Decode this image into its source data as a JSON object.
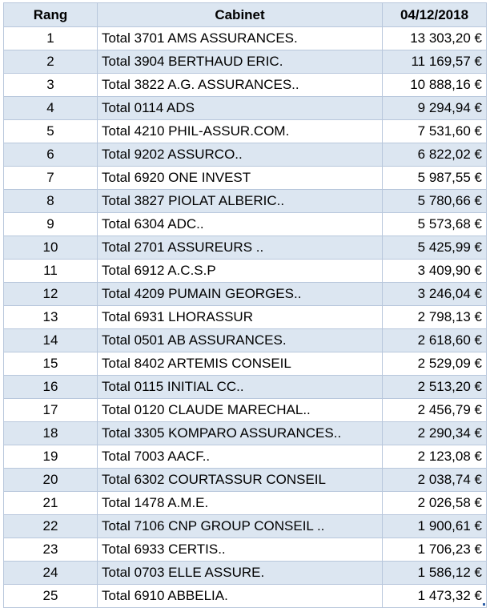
{
  "table": {
    "headers": {
      "rang": "Rang",
      "cabinet": "Cabinet",
      "date": "04/12/2018"
    },
    "rows": [
      {
        "rang": "1",
        "cabinet": "Total 3701 AMS ASSURANCES.",
        "value": "13 303,20 €"
      },
      {
        "rang": "2",
        "cabinet": "Total 3904 BERTHAUD ERIC.",
        "value": "11 169,57 €"
      },
      {
        "rang": "3",
        "cabinet": "Total 3822 A.G. ASSURANCES..",
        "value": "10 888,16 €"
      },
      {
        "rang": "4",
        "cabinet": "Total 0114 ADS",
        "value": "9 294,94 €"
      },
      {
        "rang": "5",
        "cabinet": "Total 4210 PHIL-ASSUR.COM.",
        "value": "7 531,60 €"
      },
      {
        "rang": "6",
        "cabinet": "Total 9202 ASSURCO..",
        "value": "6 822,02 €"
      },
      {
        "rang": "7",
        "cabinet": "Total 6920 ONE INVEST",
        "value": "5 987,55 €"
      },
      {
        "rang": "8",
        "cabinet": "Total 3827 PIOLAT ALBERIC..",
        "value": "5 780,66 €"
      },
      {
        "rang": "9",
        "cabinet": "Total 6304 ADC..",
        "value": "5 573,68 €"
      },
      {
        "rang": "10",
        "cabinet": "Total 2701 ASSUREURS ..",
        "value": "5 425,99 €"
      },
      {
        "rang": "11",
        "cabinet": "Total 6912 A.C.S.P",
        "value": "3 409,90 €"
      },
      {
        "rang": "12",
        "cabinet": "Total 4209 PUMAIN GEORGES..",
        "value": "3 246,04 €"
      },
      {
        "rang": "13",
        "cabinet": "Total 6931 LHORASSUR",
        "value": "2 798,13 €"
      },
      {
        "rang": "14",
        "cabinet": "Total 0501 AB ASSURANCES.",
        "value": "2 618,60 €"
      },
      {
        "rang": "15",
        "cabinet": "Total 8402 ARTEMIS CONSEIL",
        "value": "2 529,09 €"
      },
      {
        "rang": "16",
        "cabinet": "Total 0115 INITIAL CC..",
        "value": "2 513,20 €"
      },
      {
        "rang": "17",
        "cabinet": "Total 0120 CLAUDE MARECHAL..",
        "value": "2 456,79 €"
      },
      {
        "rang": "18",
        "cabinet": "Total 3305 KOMPARO ASSURANCES..",
        "value": "2 290,34 €"
      },
      {
        "rang": "19",
        "cabinet": "Total 7003 AACF..",
        "value": "2 123,08 €"
      },
      {
        "rang": "20",
        "cabinet": "Total 6302 COURTASSUR CONSEIL",
        "value": "2 038,74 €"
      },
      {
        "rang": "21",
        "cabinet": "Total 1478 A.M.E.",
        "value": "2 026,58 €"
      },
      {
        "rang": "22",
        "cabinet": "Total 7106 CNP GROUP CONSEIL ..",
        "value": "1 900,61 €"
      },
      {
        "rang": "23",
        "cabinet": "Total 6933 CERTIS..",
        "value": "1 706,23 €"
      },
      {
        "rang": "24",
        "cabinet": "Total 0703 ELLE ASSURE.",
        "value": "1 586,12 €"
      },
      {
        "rang": "25",
        "cabinet": "Total 6910 ABBELIA.",
        "value": "1 473,32 €"
      }
    ]
  },
  "colors": {
    "header_fill": "#dce6f1",
    "band_fill": "#dce6f1",
    "grid_line": "#b8c7dc",
    "selection_handle": "#2e5fa8"
  }
}
